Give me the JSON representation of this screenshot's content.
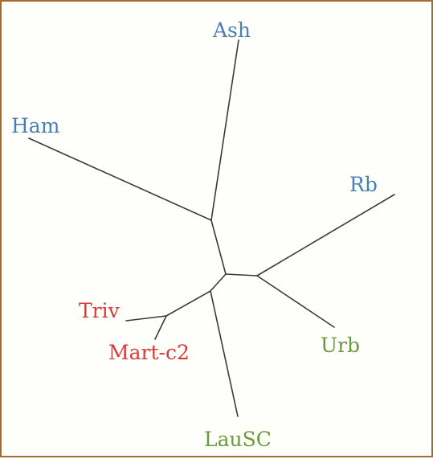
{
  "tree": {
    "leaves": [
      {
        "id": "ash",
        "label": "Ash",
        "group": "blue"
      },
      {
        "id": "ham",
        "label": "Ham",
        "group": "blue"
      },
      {
        "id": "rb",
        "label": "Rb",
        "group": "blue"
      },
      {
        "id": "urb",
        "label": "Urb",
        "group": "green"
      },
      {
        "id": "lausc",
        "label": "LauSC",
        "group": "green"
      },
      {
        "id": "triv",
        "label": "Triv",
        "group": "red"
      },
      {
        "id": "mart",
        "label": "Mart-c2",
        "group": "red"
      }
    ],
    "colors": {
      "blue": "#4a7fb5",
      "green": "#6b9a3a",
      "red": "#d83a3a",
      "branch": "#3a3a3a",
      "border": "#a86a2b"
    }
  }
}
